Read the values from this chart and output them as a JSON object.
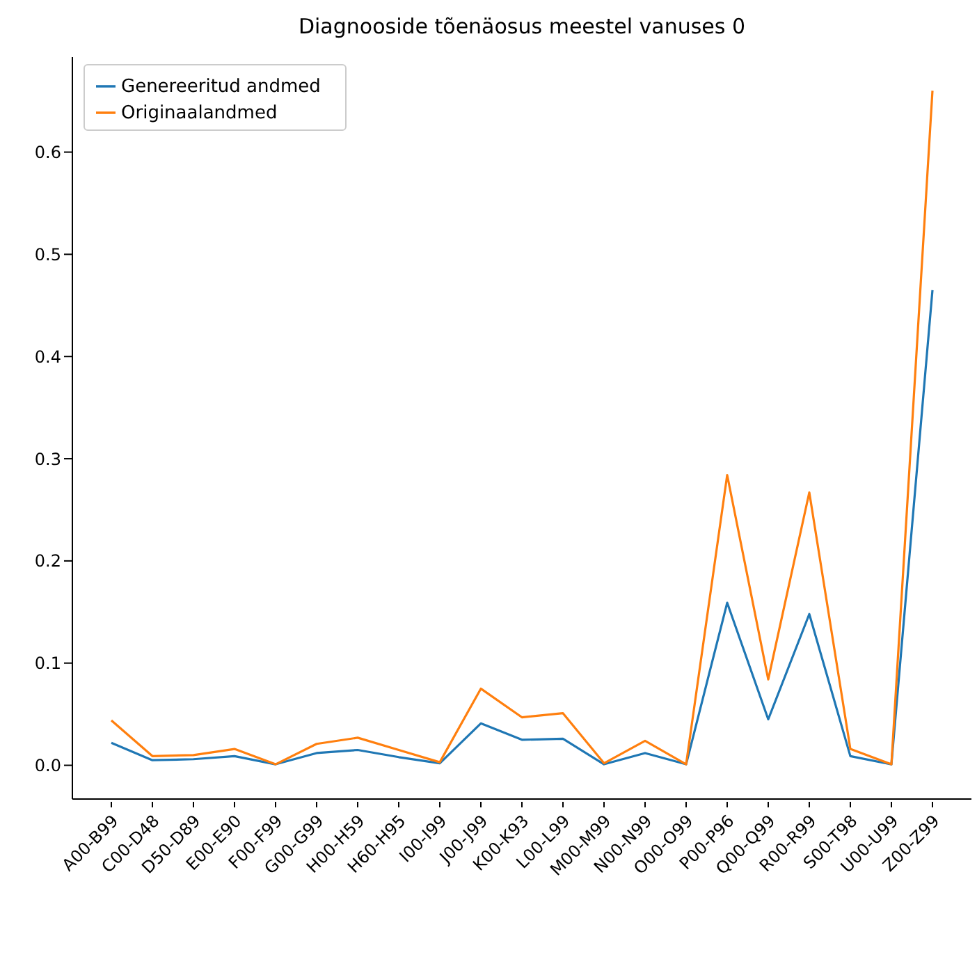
{
  "chart_data": {
    "type": "line",
    "title": "Diagnooside tõenäosus meestel vanuses 0",
    "categories": [
      "A00-B99",
      "C00-D48",
      "D50-D89",
      "E00-E90",
      "F00-F99",
      "G00-G99",
      "H00-H59",
      "H60-H95",
      "I00-I99",
      "J00-J99",
      "K00-K93",
      "L00-L99",
      "M00-M99",
      "N00-N99",
      "O00-O99",
      "P00-P96",
      "Q00-Q99",
      "R00-R99",
      "S00-T98",
      "U00-U99",
      "Z00-Z99"
    ],
    "series": [
      {
        "name": "Genereeritud andmed",
        "color": "#1f77b4",
        "values": [
          0.022,
          0.005,
          0.006,
          0.009,
          0.001,
          0.012,
          0.015,
          0.008,
          0.002,
          0.041,
          0.025,
          0.026,
          0.001,
          0.012,
          0.001,
          0.159,
          0.045,
          0.148,
          0.009,
          0.001,
          0.465
        ]
      },
      {
        "name": "Originaalandmed",
        "color": "#ff7f0e",
        "values": [
          0.044,
          0.009,
          0.01,
          0.016,
          0.001,
          0.021,
          0.027,
          0.015,
          0.003,
          0.075,
          0.047,
          0.051,
          0.002,
          0.024,
          0.001,
          0.284,
          0.084,
          0.267,
          0.016,
          0.001,
          0.66
        ]
      }
    ],
    "ylim": [
      -0.033,
      0.693
    ],
    "yticks": [
      {
        "value": 0,
        "label": "0.0"
      },
      0.1,
      0.2,
      0.3,
      0.4,
      0.5,
      0.6
    ],
    "legend": "top left",
    "grid": false,
    "marker": "none",
    "line_style": "solid"
  }
}
